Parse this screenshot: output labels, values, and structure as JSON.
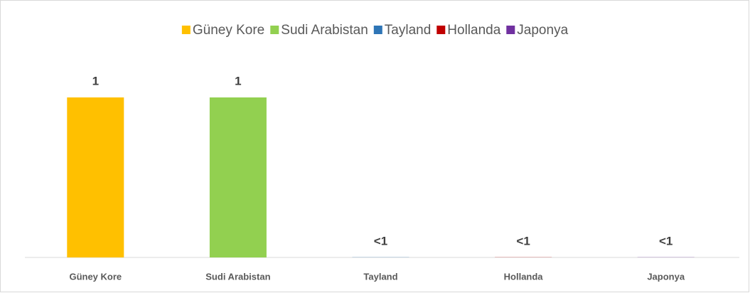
{
  "chart_data": {
    "type": "bar",
    "categories": [
      "Güney Kore",
      "Sudi Arabistan",
      "Tayland",
      "Hollanda",
      "Japonya"
    ],
    "series": [
      {
        "name": "Güney Kore",
        "color": "#FFC000",
        "values": [
          1,
          null,
          null,
          null,
          null
        ]
      },
      {
        "name": "Sudi Arabistan",
        "color": "#92D050",
        "values": [
          null,
          1,
          null,
          null,
          null
        ]
      },
      {
        "name": "Tayland",
        "color": "#2E75B6",
        "values": [
          null,
          null,
          0.001,
          null,
          null
        ],
        "value_labels": [
          null,
          null,
          "<1",
          null,
          null
        ]
      },
      {
        "name": "Hollanda",
        "color": "#C00000",
        "values": [
          null,
          null,
          null,
          0.001,
          null
        ],
        "value_labels": [
          null,
          null,
          null,
          "<1",
          null
        ]
      },
      {
        "name": "Japonya",
        "color": "#7030A0",
        "values": [
          null,
          null,
          null,
          null,
          0.001
        ],
        "value_labels": [
          null,
          null,
          null,
          null,
          "<1"
        ]
      }
    ],
    "ylim": [
      0,
      1
    ],
    "legend": "top"
  }
}
